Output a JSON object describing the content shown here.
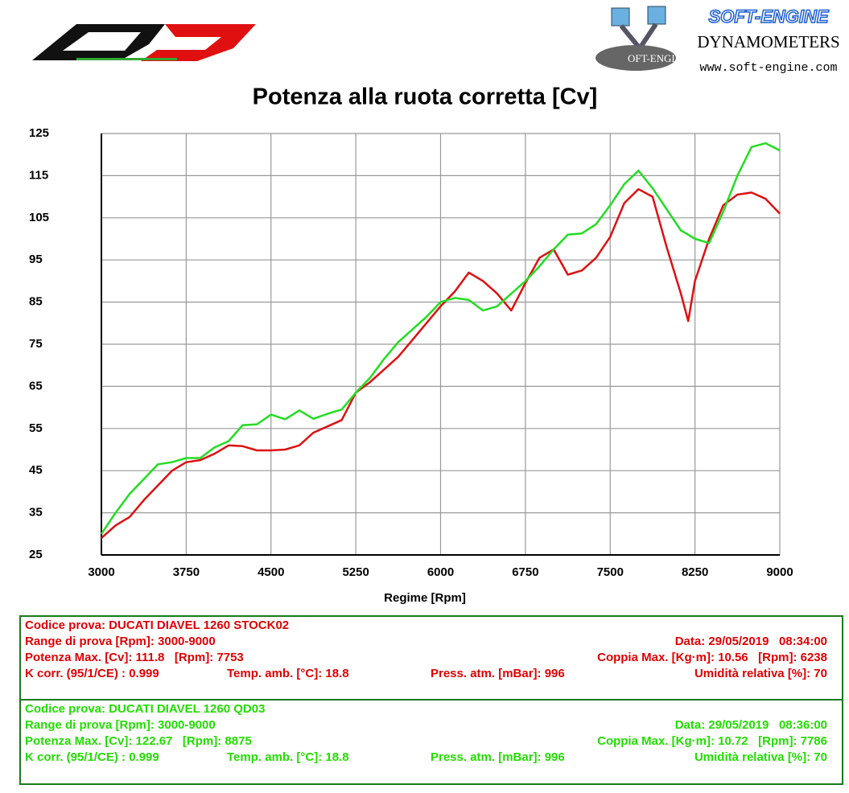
{
  "logo": {
    "brand": "SOFT-ENGINE",
    "subtitle": "DYNAMOMETERS",
    "url": "www.soft-engine.com",
    "badge": "OFT-ENGINE"
  },
  "chart_data": {
    "type": "line",
    "title": "Potenza alla ruota corretta [Cv]",
    "x_label": "Regime [Rpm]",
    "x": [
      3000,
      3125,
      3250,
      3375,
      3500,
      3625,
      3750,
      3875,
      4000,
      4125,
      4250,
      4375,
      4500,
      4625,
      4750,
      4875,
      5000,
      5125,
      5250,
      5375,
      5500,
      5625,
      5750,
      5875,
      6000,
      6125,
      6250,
      6375,
      6500,
      6625,
      6750,
      6875,
      7000,
      7125,
      7250,
      7375,
      7500,
      7625,
      7750,
      7875,
      8000,
      8125,
      8190,
      8250,
      8375,
      8500,
      8625,
      8750,
      8875,
      9000
    ],
    "series": [
      {
        "name": "DUCATI DIAVEL 1260 STOCK02",
        "color": "#dd1111",
        "values": [
          29,
          32,
          34,
          38,
          41.5,
          45,
          47,
          47.5,
          49,
          51,
          50.8,
          49.8,
          49.8,
          50,
          51,
          54,
          55.5,
          57,
          63.5,
          66,
          69,
          72,
          76,
          80,
          84,
          87.5,
          92,
          90,
          87,
          83,
          89.5,
          95.5,
          97.5,
          91.5,
          92.5,
          95.5,
          100.5,
          108.5,
          111.8,
          110,
          98,
          87,
          80.5,
          90,
          100,
          108,
          110.5,
          111,
          109.5,
          106
        ]
      },
      {
        "name": "DUCATI DIAVEL 1260 QD03",
        "color": "#22dd22",
        "values": [
          30,
          35,
          39.5,
          43,
          46.5,
          47,
          48,
          48,
          50.5,
          52,
          55.8,
          56,
          58.3,
          57.2,
          59.3,
          57.3,
          58.5,
          59.5,
          63.5,
          67,
          71.5,
          75.5,
          78.5,
          81.5,
          85,
          86,
          85.5,
          83,
          84,
          87,
          90,
          93.5,
          97.5,
          101,
          101.3,
          103.5,
          108,
          113,
          116.2,
          112,
          107,
          102,
          101,
          100,
          99,
          106.5,
          115,
          121.8,
          122.7,
          121
        ]
      }
    ],
    "xlim": [
      3000,
      9000
    ],
    "xticks": [
      3000,
      3750,
      4500,
      5250,
      6000,
      6750,
      7500,
      8250,
      9000
    ],
    "ylim": [
      25,
      125
    ],
    "yticks": [
      25,
      35,
      45,
      55,
      65,
      75,
      85,
      95,
      105,
      115,
      125
    ],
    "grid": true
  },
  "tests": [
    {
      "color": "#e00000",
      "code": "Codice prova: DUCATI DIAVEL 1260 STOCK02",
      "range": "Range di prova [Rpm]: 3000-9000",
      "date": "Data: 29/05/2019   08:34:00",
      "power": "Potenza Max. [Cv]: 111.8   [Rpm]: 7753",
      "torque": "Coppia Max. [Kg·m]: 10.56   [Rpm]: 6238",
      "kcorr": "K corr. (95/1/CE) : 0.999",
      "temp": "Temp. amb. [°C]: 18.8",
      "press": "Press. atm. [mBar]: 996",
      "hum": "Umidità relativa [%]: 70"
    },
    {
      "color": "#22dd00",
      "code": "Codice prova: DUCATI DIAVEL 1260 QD03",
      "range": "Range di prova [Rpm]: 3000-9000",
      "date": "Data: 29/05/2019   08:36:00",
      "power": "Potenza Max. [Cv]: 122.67   [Rpm]: 8875",
      "torque": "Coppia Max. [Kg·m]: 10.72   [Rpm]: 7786",
      "kcorr": "K corr. (95/1/CE) : 0.999",
      "temp": "Temp. amb. [°C]: 18.8",
      "press": "Press. atm. [mBar]: 996",
      "hum": "Umidità relativa [%]: 70"
    }
  ]
}
